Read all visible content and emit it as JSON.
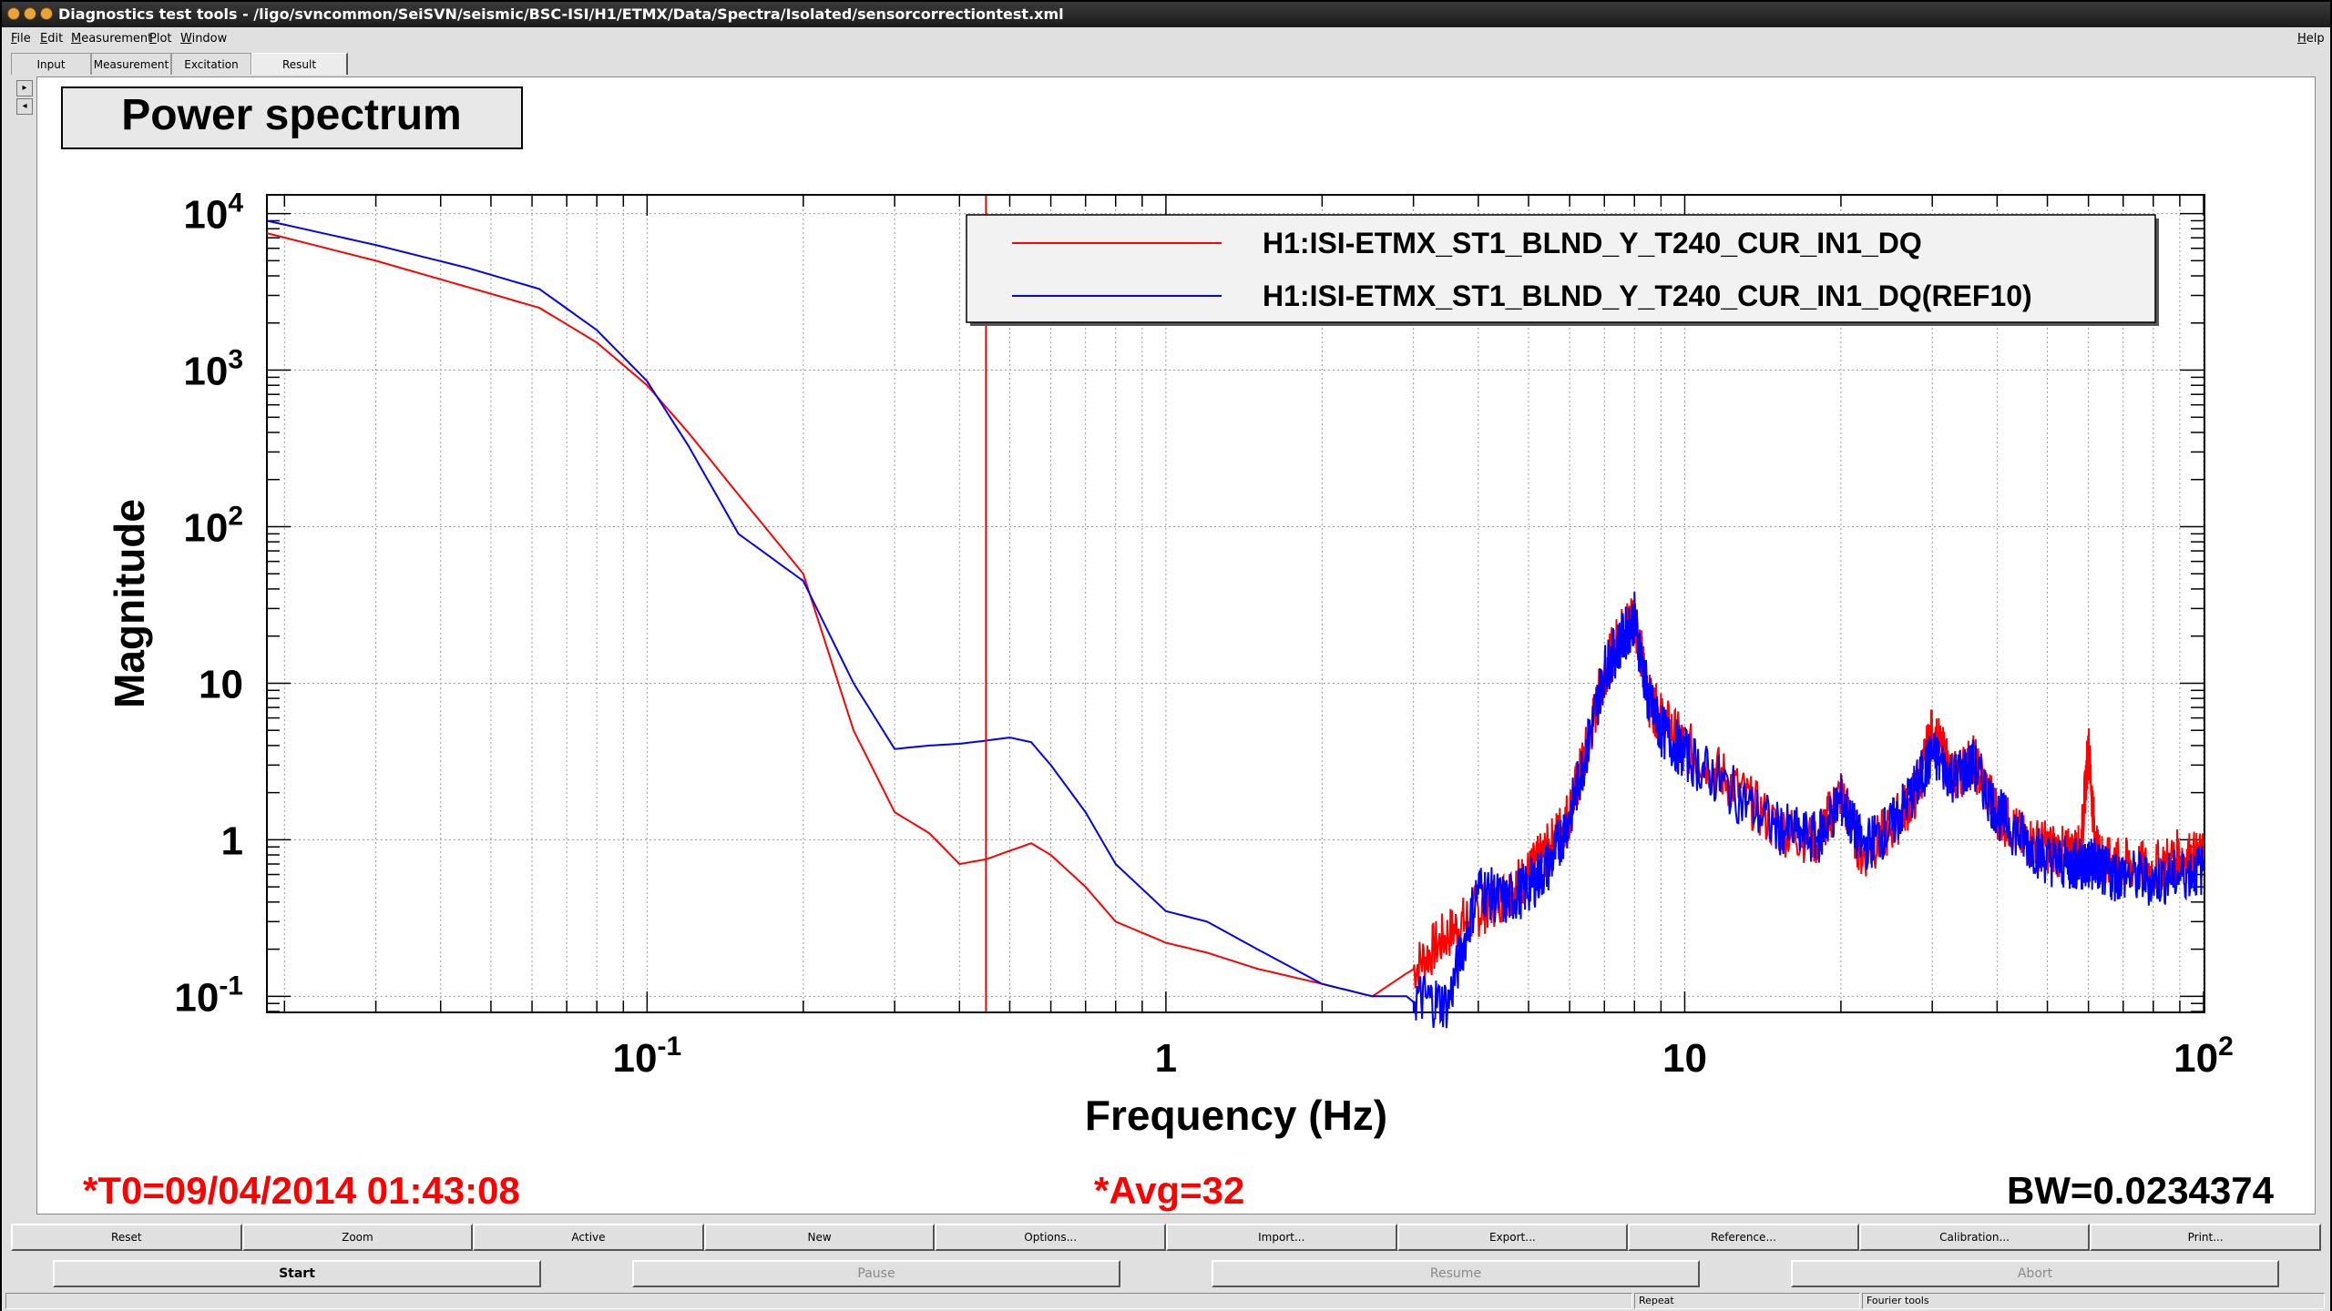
{
  "window": {
    "title": "Diagnostics test tools - /ligo/svncommon/SeiSVN/seismic/BSC-ISI/H1/ETMX/Data/Spectra/Isolated/sensorcorrectiontest.xml"
  },
  "menu": {
    "items": [
      "File",
      "Edit",
      "Measurement",
      "Plot",
      "Window"
    ],
    "help": "Help"
  },
  "tabs": [
    "Input",
    "Measurement",
    "Excitation",
    "Result"
  ],
  "active_tab": "Result",
  "side_buttons": [
    "▸",
    "◂"
  ],
  "plot": {
    "title_box": "Power spectrum",
    "xlabel": "Frequency (Hz)",
    "ylabel": "Magnitude",
    "t0": "*T0=09/04/2014 01:43:08",
    "avg": "*Avg=32",
    "bw": "BW=0.0234374",
    "legend": [
      {
        "name": "H1:ISI-ETMX_ST1_BLND_Y_T240_CUR_IN1_DQ",
        "color": "#ff0000"
      },
      {
        "name": "H1:ISI-ETMX_ST1_BLND_Y_T240_CUR_IN1_DQ(REF10)",
        "color": "#0000ff"
      }
    ],
    "x_tick_labels": [
      {
        "base": "10",
        "exp": "-1"
      },
      {
        "base": "1",
        "exp": ""
      },
      {
        "base": "10",
        "exp": ""
      },
      {
        "base": "10",
        "exp": "2"
      }
    ],
    "y_tick_labels": [
      {
        "base": "10",
        "exp": "4"
      },
      {
        "base": "10",
        "exp": "3"
      },
      {
        "base": "10",
        "exp": "2"
      },
      {
        "base": "10",
        "exp": ""
      },
      {
        "base": "1",
        "exp": ""
      },
      {
        "base": "10",
        "exp": "-1"
      }
    ]
  },
  "chart_data": {
    "type": "line",
    "xlabel": "Frequency (Hz)",
    "ylabel": "Magnitude",
    "x_scale": "log",
    "y_scale": "log",
    "xlim": [
      0.0185,
      100
    ],
    "ylim": [
      0.08,
      13000
    ],
    "grid": true,
    "legend_position": "top-right",
    "cursor_x": 0.45,
    "series": [
      {
        "name": "H1:ISI-ETMX_ST1_BLND_Y_T240_CUR_IN1_DQ",
        "color": "#ff0000",
        "x": [
          0.0185,
          0.03,
          0.045,
          0.062,
          0.08,
          0.1,
          0.12,
          0.15,
          0.2,
          0.25,
          0.3,
          0.35,
          0.4,
          0.45,
          0.5,
          0.55,
          0.6,
          0.7,
          0.8,
          1.0,
          1.2,
          1.5,
          2.0,
          2.5,
          3.0,
          3.5,
          4.0,
          4.5,
          5.0,
          5.5,
          6.0,
          6.5,
          7.0,
          7.5,
          8.0,
          8.5,
          9.0,
          10,
          12,
          15,
          18,
          20,
          22,
          25,
          28,
          30,
          33,
          36,
          40,
          45,
          50,
          55,
          58,
          60,
          62,
          65,
          70,
          80,
          90,
          100
        ],
        "y": [
          7500,
          5000,
          3400,
          2500,
          1500,
          800,
          400,
          160,
          50,
          5,
          1.5,
          1.1,
          0.7,
          0.75,
          0.85,
          0.95,
          0.8,
          0.5,
          0.3,
          0.22,
          0.19,
          0.15,
          0.12,
          0.1,
          0.15,
          0.25,
          0.35,
          0.45,
          0.6,
          0.9,
          1.5,
          4,
          12,
          20,
          28,
          8,
          6,
          4,
          2.5,
          1.2,
          1.0,
          2.0,
          0.8,
          1.2,
          2.0,
          5,
          2.5,
          3.2,
          1.5,
          1.0,
          0.9,
          0.8,
          0.85,
          4,
          0.85,
          0.7,
          0.7,
          0.65,
          0.8,
          0.75
        ]
      },
      {
        "name": "H1:ISI-ETMX_ST1_BLND_Y_T240_CUR_IN1_DQ(REF10)",
        "color": "#0000ff",
        "x": [
          0.0185,
          0.03,
          0.045,
          0.062,
          0.08,
          0.1,
          0.12,
          0.15,
          0.2,
          0.25,
          0.3,
          0.35,
          0.4,
          0.45,
          0.5,
          0.55,
          0.6,
          0.7,
          0.8,
          1.0,
          1.2,
          1.5,
          2.0,
          2.5,
          3.0,
          3.5,
          4.0,
          4.5,
          5.0,
          5.5,
          6.0,
          6.5,
          7.0,
          7.5,
          8.0,
          8.5,
          9.0,
          10,
          12,
          15,
          18,
          20,
          22,
          25,
          28,
          30,
          33,
          36,
          40,
          45,
          50,
          55,
          58,
          60,
          62,
          65,
          70,
          80,
          90,
          100
        ],
        "y": [
          9000,
          6300,
          4500,
          3300,
          1800,
          850,
          330,
          90,
          45,
          10,
          3.8,
          4.0,
          4.1,
          4.3,
          4.5,
          4.2,
          3.0,
          1.5,
          0.7,
          0.35,
          0.3,
          0.2,
          0.12,
          0.1,
          0.1,
          0.09,
          0.5,
          0.4,
          0.5,
          0.7,
          1.4,
          4,
          12,
          18,
          26,
          8,
          5,
          3.5,
          2.2,
          1.2,
          1.0,
          1.8,
          0.9,
          1.2,
          2.2,
          3.5,
          2.5,
          3.0,
          1.5,
          1.0,
          0.75,
          0.7,
          0.7,
          0.7,
          0.7,
          0.6,
          0.6,
          0.55,
          0.6,
          0.65
        ]
      }
    ]
  },
  "toolbar": [
    "Reset",
    "Zoom",
    "Active",
    "New",
    "Options...",
    "Import...",
    "Export...",
    "Reference...",
    "Calibration...",
    "Print..."
  ],
  "control": {
    "start": "Start",
    "pause": "Pause",
    "resume": "Resume",
    "abort": "Abort"
  },
  "statusbar": {
    "repeat": "Repeat",
    "fourier": "Fourier tools"
  }
}
